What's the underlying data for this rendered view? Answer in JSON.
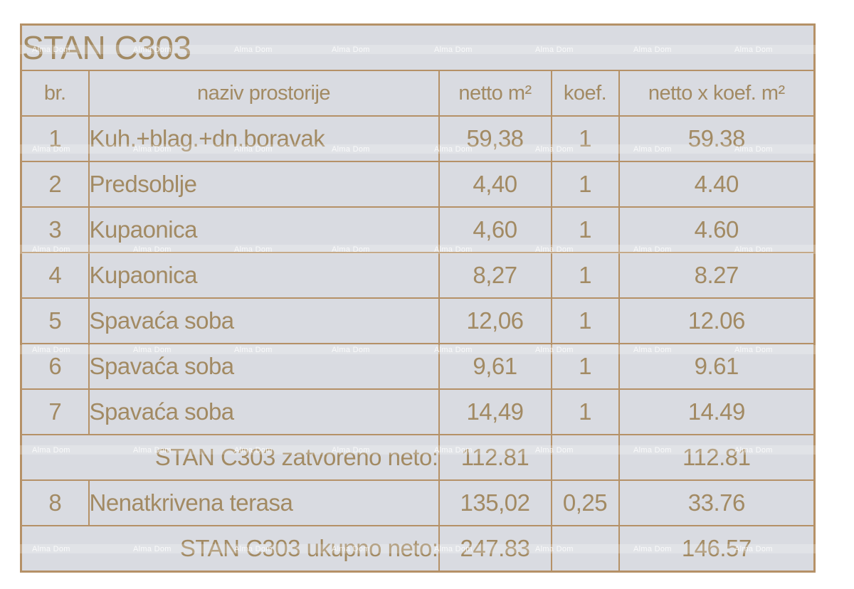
{
  "title": "STAN C303",
  "watermark": {
    "text": "Alma Dom"
  },
  "table": {
    "headers": [
      "br.",
      "naziv prostorije",
      "netto m²",
      "koef.",
      "netto x koef. m²"
    ],
    "rows": [
      {
        "br": "1",
        "name": "Kuh.+blag.+dn.boravak",
        "netto": "59,38",
        "koef": "1",
        "netto_koef": "59.38"
      },
      {
        "br": "2",
        "name": "Predsoblje",
        "netto": "4,40",
        "koef": "1",
        "netto_koef": "4.40"
      },
      {
        "br": "3",
        "name": "Kupaonica",
        "netto": "4,60",
        "koef": "1",
        "netto_koef": "4.60"
      },
      {
        "br": "4",
        "name": "Kupaonica",
        "netto": "8,27",
        "koef": "1",
        "netto_koef": "8.27"
      },
      {
        "br": "5",
        "name": "Spavaća soba",
        "netto": "12,06",
        "koef": "1",
        "netto_koef": "12.06"
      },
      {
        "br": "6",
        "name": "Spavaća soba",
        "netto": "9,61",
        "koef": "1",
        "netto_koef": "9.61"
      },
      {
        "br": "7",
        "name": "Spavaća soba",
        "netto": "14,49",
        "koef": "1",
        "netto_koef": "14.49"
      },
      {
        "br": "8",
        "name": "Nenatkrivena terasa",
        "netto": "135,02",
        "koef": "0,25",
        "netto_koef": "33.76"
      }
    ],
    "subtotal": {
      "label": "STAN C303 zatvoreno neto:",
      "netto": "112.81",
      "koef": "",
      "netto_koef": "112.81"
    },
    "total": {
      "label": "STAN C303 ukupno neto:",
      "netto": "247.83",
      "koef": "",
      "netto_koef": "146.57"
    }
  },
  "colors": {
    "page_bg": "#ffffff",
    "cell_bg": "#d9dbe1",
    "table_border": "#b59167",
    "strong_border": "#aa8352",
    "text": "#a28a63",
    "watermark": "#ffffff"
  }
}
